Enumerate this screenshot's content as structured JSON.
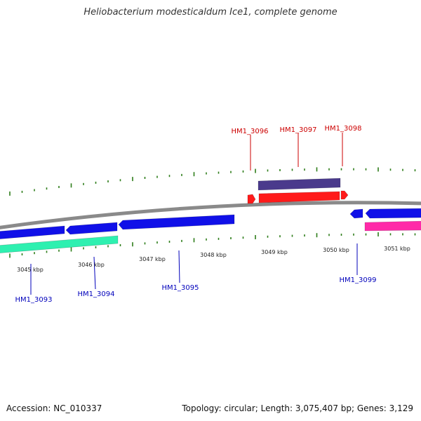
{
  "title": "Heliobacterium modesticaldum Ice1, complete genome",
  "footer": {
    "accession": "Accession: NC_010337",
    "summary": "Topology: circular; Length: 3,075,407 bp; Genes: 3,129"
  },
  "colors": {
    "backbone": "#8a8a8a",
    "tick": "#2e7d1a",
    "top_label": "#cc0000",
    "bottom_label": "#0000bb",
    "blue_gene": "#1010e8",
    "teal_gene": "#2ef0b0",
    "red_gene": "#ff1a1a",
    "purple_gene": "#4a3a8c",
    "magenta_gene": "#ff2aa8"
  },
  "scale_labels": [
    "3045 kbp",
    "3046 kbp",
    "3047 kbp",
    "3048 kbp",
    "3049 kbp",
    "3050 kbp",
    "3051 kbp"
  ],
  "gene_labels_top": [
    "HM1_3096",
    "HM1_3097",
    "HM1_3098"
  ],
  "gene_labels_bottom": [
    "HM1_3093",
    "HM1_3094",
    "HM1_3095",
    "HM1_3099"
  ]
}
